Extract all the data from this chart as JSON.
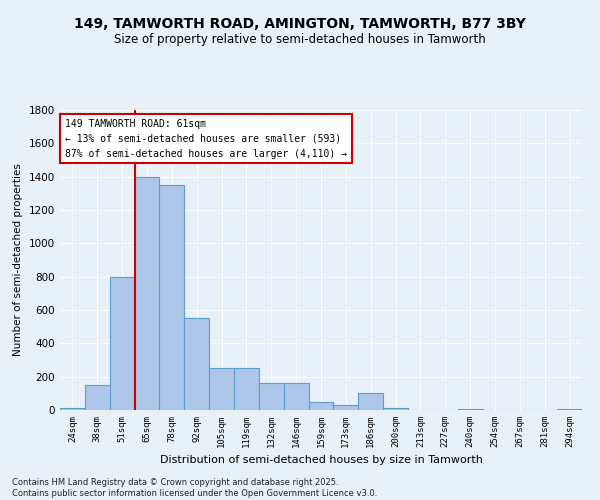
{
  "title_line1": "149, TAMWORTH ROAD, AMINGTON, TAMWORTH, B77 3BY",
  "title_line2": "Size of property relative to semi-detached houses in Tamworth",
  "xlabel": "Distribution of semi-detached houses by size in Tamworth",
  "ylabel": "Number of semi-detached properties",
  "categories": [
    "24sqm",
    "38sqm",
    "51sqm",
    "65sqm",
    "78sqm",
    "92sqm",
    "105sqm",
    "119sqm",
    "132sqm",
    "146sqm",
    "159sqm",
    "173sqm",
    "186sqm",
    "200sqm",
    "213sqm",
    "227sqm",
    "240sqm",
    "254sqm",
    "267sqm",
    "281sqm",
    "294sqm"
  ],
  "values": [
    10,
    150,
    800,
    1400,
    1350,
    550,
    250,
    250,
    160,
    160,
    50,
    30,
    100,
    10,
    0,
    0,
    5,
    0,
    0,
    0,
    5
  ],
  "bar_color": "#aec6e8",
  "bar_edge_color": "#5a9fd4",
  "background_color": "#e8f0f8",
  "grid_color": "#ffffff",
  "vline_color": "#cc0000",
  "vline_x": 2.5,
  "annotation_text": "149 TAMWORTH ROAD: 61sqm\n← 13% of semi-detached houses are smaller (593)\n87% of semi-detached houses are larger (4,110) →",
  "annotation_box_color": "#ffffff",
  "annotation_edge_color": "#cc0000",
  "footer_text": "Contains HM Land Registry data © Crown copyright and database right 2025.\nContains public sector information licensed under the Open Government Licence v3.0.",
  "ylim": [
    0,
    1800
  ],
  "yticks": [
    0,
    200,
    400,
    600,
    800,
    1000,
    1200,
    1400,
    1600,
    1800
  ]
}
